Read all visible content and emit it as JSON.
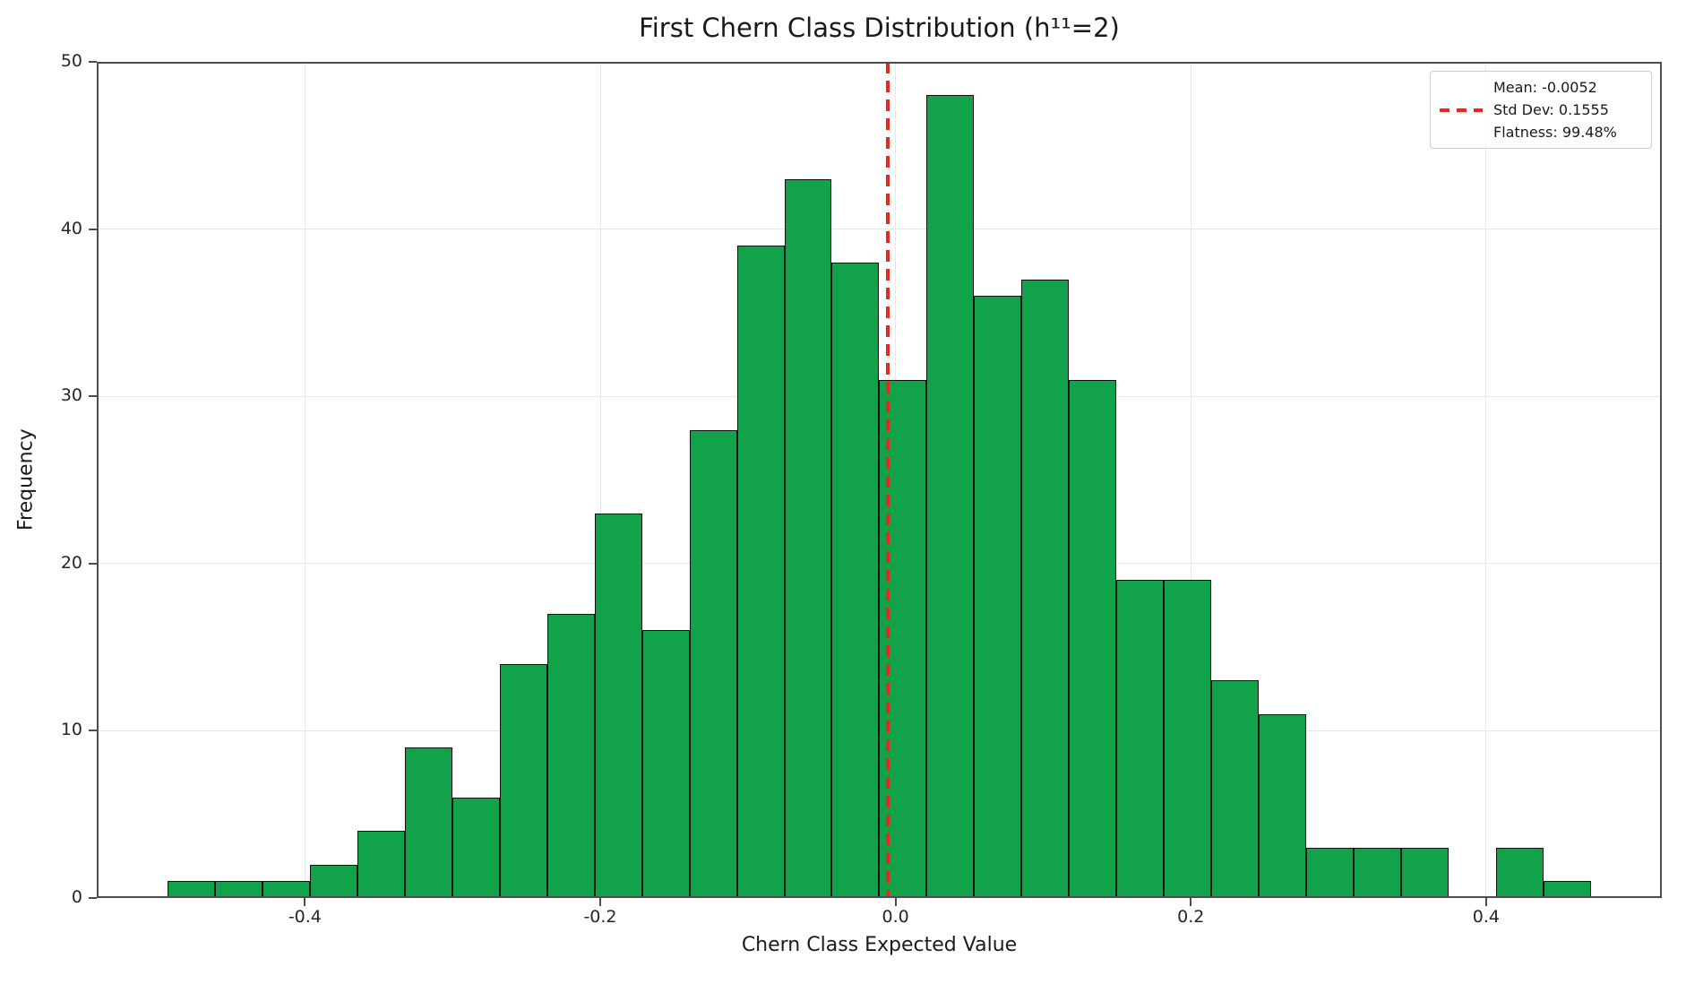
{
  "chart_data": {
    "type": "bar",
    "subtype": "histogram",
    "title": "First Chern Class Distribution (h¹¹=2)",
    "xlabel": "Chern Class Expected Value",
    "ylabel": "Frequency",
    "bins": {
      "start": -0.493,
      "width": 0.03213,
      "count": 30
    },
    "counts": [
      1,
      1,
      1,
      2,
      4,
      9,
      6,
      14,
      17,
      23,
      16,
      28,
      39,
      43,
      38,
      31,
      48,
      36,
      37,
      31,
      19,
      19,
      13,
      11,
      3,
      3,
      3,
      0,
      3,
      1
    ],
    "xlim": [
      -0.541,
      0.519
    ],
    "ylim": [
      0,
      50
    ],
    "xticks": [
      -0.4,
      -0.2,
      0.0,
      0.2,
      0.4
    ],
    "xtick_labels": [
      "-0.4",
      "-0.2",
      "0.0",
      "0.2",
      "0.4"
    ],
    "yticks": [
      0,
      10,
      20,
      30,
      40,
      50
    ],
    "ytick_labels": [
      "0",
      "10",
      "20",
      "30",
      "40",
      "50"
    ],
    "grid": true,
    "legend_position": "upper right",
    "mean_line": {
      "x": -0.0052,
      "style": "dashed"
    },
    "stats": {
      "mean": -0.0052,
      "std_dev": 0.1555,
      "flatness_pct": 99.48
    },
    "legend": {
      "entries": [
        {
          "label": "Mean: -0.0052",
          "marker": "none"
        },
        {
          "label": "Std Dev: 0.1555",
          "marker": "red-dashed-line"
        },
        {
          "label": "Flatness: 99.48%",
          "marker": "none"
        }
      ]
    },
    "colors": {
      "bar_fill": "#12a34a",
      "bar_edge": "#111111",
      "mean_line": "#e8281e",
      "grid": "#e7e7e7",
      "spine": "#4d4d4d",
      "text": "#1a1a1a",
      "legend_border": "#cccccc",
      "background": "#ffffff"
    }
  }
}
